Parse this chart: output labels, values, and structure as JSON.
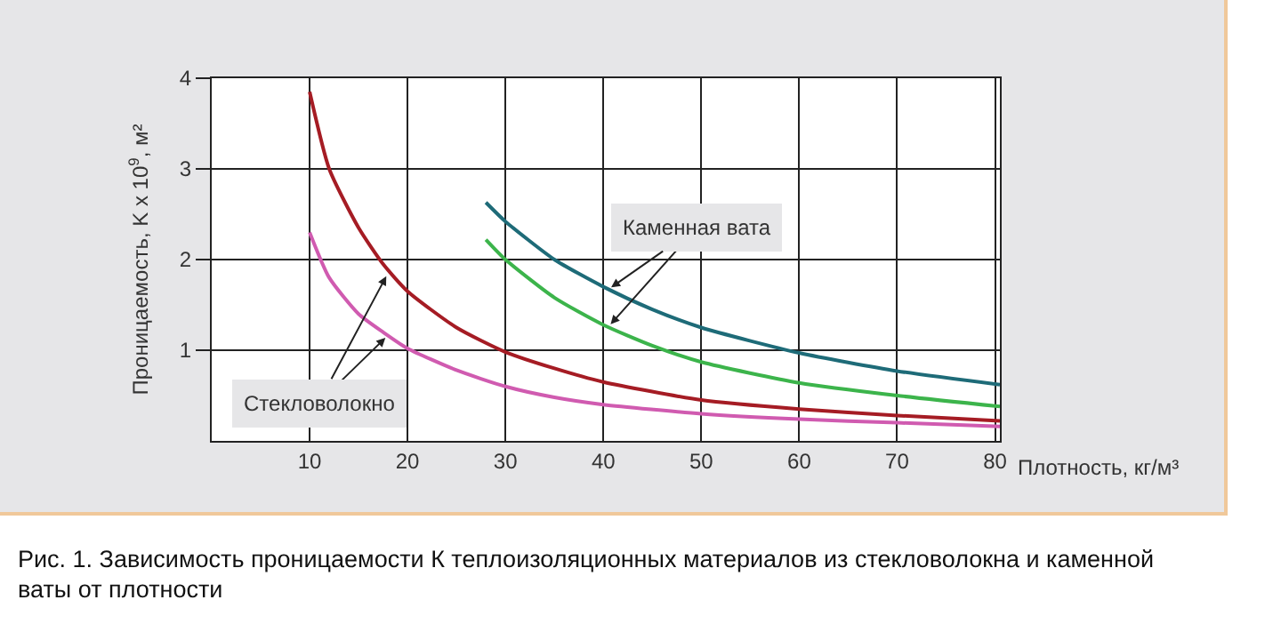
{
  "chart_data": {
    "type": "line",
    "title": "Рис. 1. Зависимость проницаемости К теплоизоляционных материалов из стекловолокна и каменной ваты от плотности",
    "xlabel": "Плотность, кг/м³",
    "ylabel": "Проницаемость, K x 10$^{9}$, м²",
    "xlim": [
      0,
      80.5
    ],
    "ylim": [
      0,
      4
    ],
    "xticks": [
      10,
      20,
      30,
      40,
      50,
      60,
      70,
      80
    ],
    "yticks": [
      1,
      2,
      3,
      4
    ],
    "grid": true,
    "marker": "none",
    "line_style": "solid",
    "series": [
      {
        "color": "#a51c24",
        "x": [
          10,
          12,
          15,
          17.5,
          20,
          25,
          30,
          35,
          40,
          50,
          60,
          70,
          80.5
        ],
        "values": [
          3.85,
          3.0,
          2.35,
          1.95,
          1.65,
          1.25,
          0.98,
          0.8,
          0.65,
          0.45,
          0.35,
          0.28,
          0.22
        ]
      },
      {
        "color": "#d05bb0",
        "x": [
          10,
          12,
          15,
          17.5,
          20,
          25,
          30,
          35,
          40,
          50,
          60,
          70,
          80.5
        ],
        "values": [
          2.3,
          1.8,
          1.4,
          1.2,
          1.02,
          0.78,
          0.6,
          0.48,
          0.4,
          0.3,
          0.24,
          0.2,
          0.16
        ]
      },
      {
        "color": "#1e6b78",
        "x": [
          28,
          30,
          35,
          40,
          45,
          50,
          60,
          70,
          80.5
        ],
        "values": [
          2.63,
          2.42,
          2.0,
          1.7,
          1.45,
          1.25,
          0.97,
          0.77,
          0.62
        ]
      },
      {
        "color": "#3cb44b",
        "x": [
          28,
          30,
          35,
          40,
          45,
          50,
          60,
          70,
          80.5
        ],
        "values": [
          2.22,
          2.0,
          1.58,
          1.28,
          1.05,
          0.87,
          0.64,
          0.5,
          0.38
        ]
      }
    ],
    "annotations": [
      {
        "text": "Стекловолокно",
        "x": 18,
        "y": 1.85
      },
      {
        "text": "Каменная вата",
        "x": 40.5,
        "y": 1.67
      }
    ]
  }
}
